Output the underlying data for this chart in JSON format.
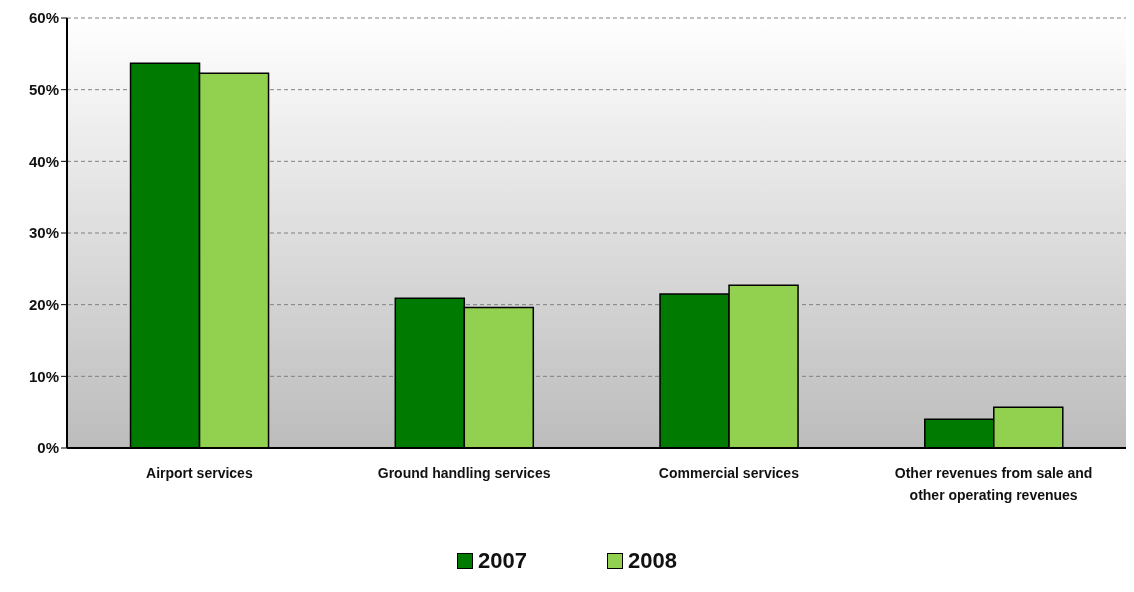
{
  "chart_data": {
    "type": "bar",
    "categories": [
      "Airport services",
      "Ground handling services",
      "Commercial services",
      "Other revenues from sale and other operating revenues"
    ],
    "series": [
      {
        "name": "2007",
        "color": "#007a00",
        "values": [
          53.7,
          20.9,
          21.5,
          4.0
        ]
      },
      {
        "name": "2008",
        "color": "#92d050",
        "values": [
          52.3,
          19.6,
          22.7,
          5.7
        ]
      }
    ],
    "ylim": [
      0,
      60
    ],
    "yticks": [
      {
        "value": 0,
        "label": "0%"
      },
      {
        "value": 10,
        "label": "10%"
      },
      {
        "value": 20,
        "label": "20%"
      },
      {
        "value": 30,
        "label": "30%"
      },
      {
        "value": 40,
        "label": "40%"
      },
      {
        "value": 50,
        "label": "50%"
      },
      {
        "value": 60,
        "label": "60%"
      }
    ],
    "grid": "y",
    "legend": "bottom"
  }
}
